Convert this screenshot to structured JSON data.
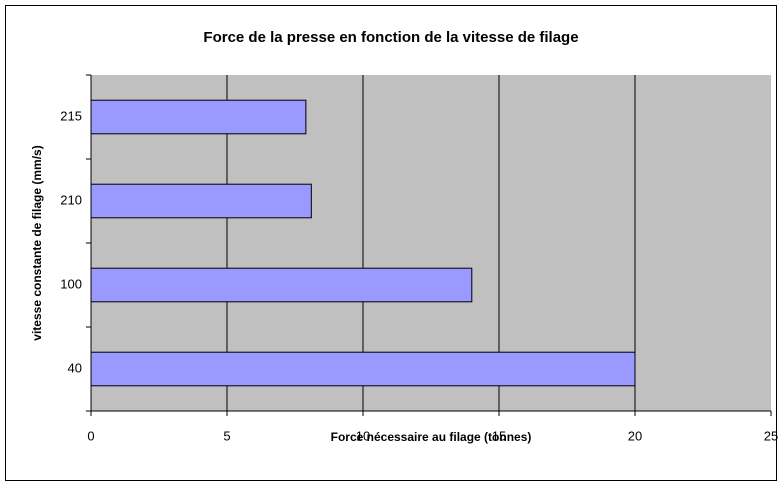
{
  "chart_data": {
    "type": "bar",
    "orientation": "horizontal",
    "title": "Force de la presse en fonction de la vitesse de filage",
    "x_label": "Force nécessaire au filage (tonnes)",
    "y_label": "vitesse constante de filage (mm/s)",
    "categories": [
      "40",
      "100",
      "210",
      "215"
    ],
    "values": [
      20,
      14,
      8.1,
      7.9
    ],
    "color": "#9999ff",
    "xlim": [
      0,
      25
    ],
    "xticks": [
      0,
      5,
      10,
      15,
      20,
      25
    ],
    "grid": true
  }
}
